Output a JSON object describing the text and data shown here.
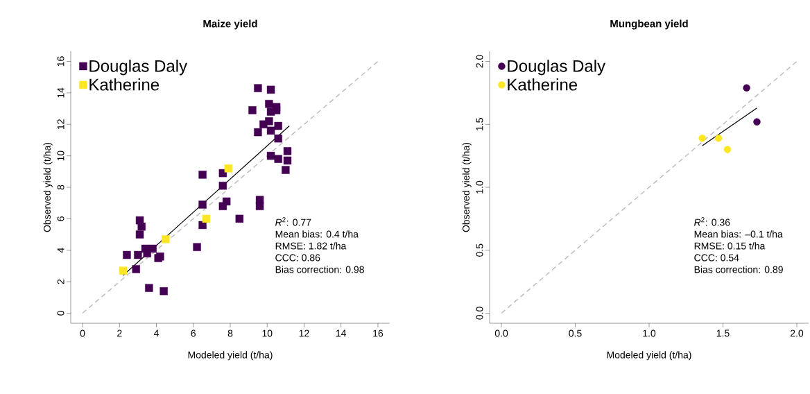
{
  "chart_data": [
    {
      "type": "scatter",
      "title": "Maize yield",
      "xlabel": "Modeled yield (t/ha)",
      "ylabel": "Observed yield (t/ha)",
      "marker": "square",
      "legend": "top left",
      "grid": false,
      "xlim": [
        -0.64,
        16.64
      ],
      "ylim": [
        -0.64,
        16.64
      ],
      "xticks": [
        0,
        2,
        4,
        6,
        8,
        10,
        12,
        14,
        16
      ],
      "yticks": [
        0,
        2,
        4,
        6,
        8,
        10,
        12,
        14,
        16
      ],
      "series": [
        {
          "name": "Douglas Daly",
          "color": "#440154",
          "x": [
            9.5,
            10.2,
            10.1,
            10.5,
            9.2,
            10.2,
            10.5,
            9.8,
            10.1,
            10.6,
            9.5,
            10.2,
            10.6,
            11.1,
            10.2,
            10.6,
            11.1,
            11.0,
            6.5,
            7.6,
            7.6,
            7.8,
            7.6,
            6.5,
            9.6,
            9.6,
            8.5,
            6.5,
            6.2,
            3.1,
            3.2,
            3.1,
            2.4,
            3.4,
            3.8,
            3.0,
            4.1,
            4.2,
            3.5,
            2.9,
            3.6,
            4.4
          ],
          "values": [
            14.3,
            14.2,
            13.3,
            13.1,
            12.9,
            12.8,
            12.9,
            12.0,
            12.2,
            11.9,
            11.5,
            11.6,
            11.1,
            10.3,
            10.0,
            9.8,
            9.7,
            9.1,
            8.8,
            8.9,
            8.1,
            7.1,
            6.8,
            6.9,
            7.2,
            6.8,
            6.0,
            5.6,
            4.2,
            5.9,
            5.5,
            5.0,
            3.7,
            4.1,
            4.1,
            3.7,
            3.5,
            3.6,
            3.8,
            2.8,
            1.6,
            1.4
          ]
        },
        {
          "name": "Katherine",
          "color": "#fde725",
          "x": [
            2.2,
            4.5,
            6.7,
            7.9
          ],
          "values": [
            2.7,
            4.7,
            6.0,
            9.2
          ]
        },
        {
          "type": "line",
          "color": "#000000",
          "line_style": "solid",
          "marker": "none",
          "x": [
            2.2,
            11.2
          ],
          "values": [
            2.4,
            11.9
          ]
        },
        {
          "type": "line",
          "color": "#bebebe",
          "line_style": "dashed",
          "marker": "none",
          "x": [
            0,
            16
          ],
          "values": [
            0,
            16
          ]
        }
      ],
      "annotations": [
        "*R*$^{2}$: 0.77",
        "Mean bias: 0.4 t/ha",
        "RMSE: 1.82 t/ha",
        "CCC: 0.86",
        "Bias correction: 0.98"
      ]
    },
    {
      "type": "scatter",
      "title": "Mungbean yield",
      "xlabel": "Modeled yield (t/ha)",
      "ylabel": "Observed yield (t/ha)",
      "marker": "circle",
      "legend": "top left",
      "grid": false,
      "xlim": [
        -0.08,
        2.08
      ],
      "ylim": [
        -0.08,
        2.08
      ],
      "xticks": [
        {
          "value": 0,
          "label": "0.0"
        },
        {
          "value": 0.5,
          "label": "0.5"
        },
        {
          "value": 1,
          "label": "1.0"
        },
        {
          "value": 1.5,
          "label": "1.5"
        },
        {
          "value": 2,
          "label": "2.0"
        }
      ],
      "yticks": [
        {
          "value": 0,
          "label": "0.0"
        },
        {
          "value": 0.5,
          "label": "0.5"
        },
        {
          "value": 1,
          "label": "1.0"
        },
        {
          "value": 1.5,
          "label": "1.5"
        },
        {
          "value": 2,
          "label": "2.0"
        }
      ],
      "series": [
        {
          "name": "Douglas Daly",
          "color": "#440154",
          "x": [
            1.66,
            1.73
          ],
          "values": [
            1.79,
            1.52
          ]
        },
        {
          "name": "Katherine",
          "color": "#fde725",
          "x": [
            1.36,
            1.47,
            1.53
          ],
          "values": [
            1.39,
            1.39,
            1.3
          ]
        },
        {
          "type": "line",
          "color": "#000000",
          "line_style": "solid",
          "marker": "none",
          "x": [
            1.36,
            1.73
          ],
          "values": [
            1.33,
            1.63
          ]
        },
        {
          "type": "line",
          "color": "#bebebe",
          "line_style": "dashed",
          "marker": "none",
          "x": [
            0,
            2
          ],
          "values": [
            0,
            2
          ]
        }
      ],
      "annotations": [
        "*R*$^{2}$: 0.36",
        "Mean bias: –0.1 t/ha",
        "RMSE: 0.15 t/ha",
        "CCC: 0.54",
        "Bias correction: 0.89"
      ]
    }
  ]
}
